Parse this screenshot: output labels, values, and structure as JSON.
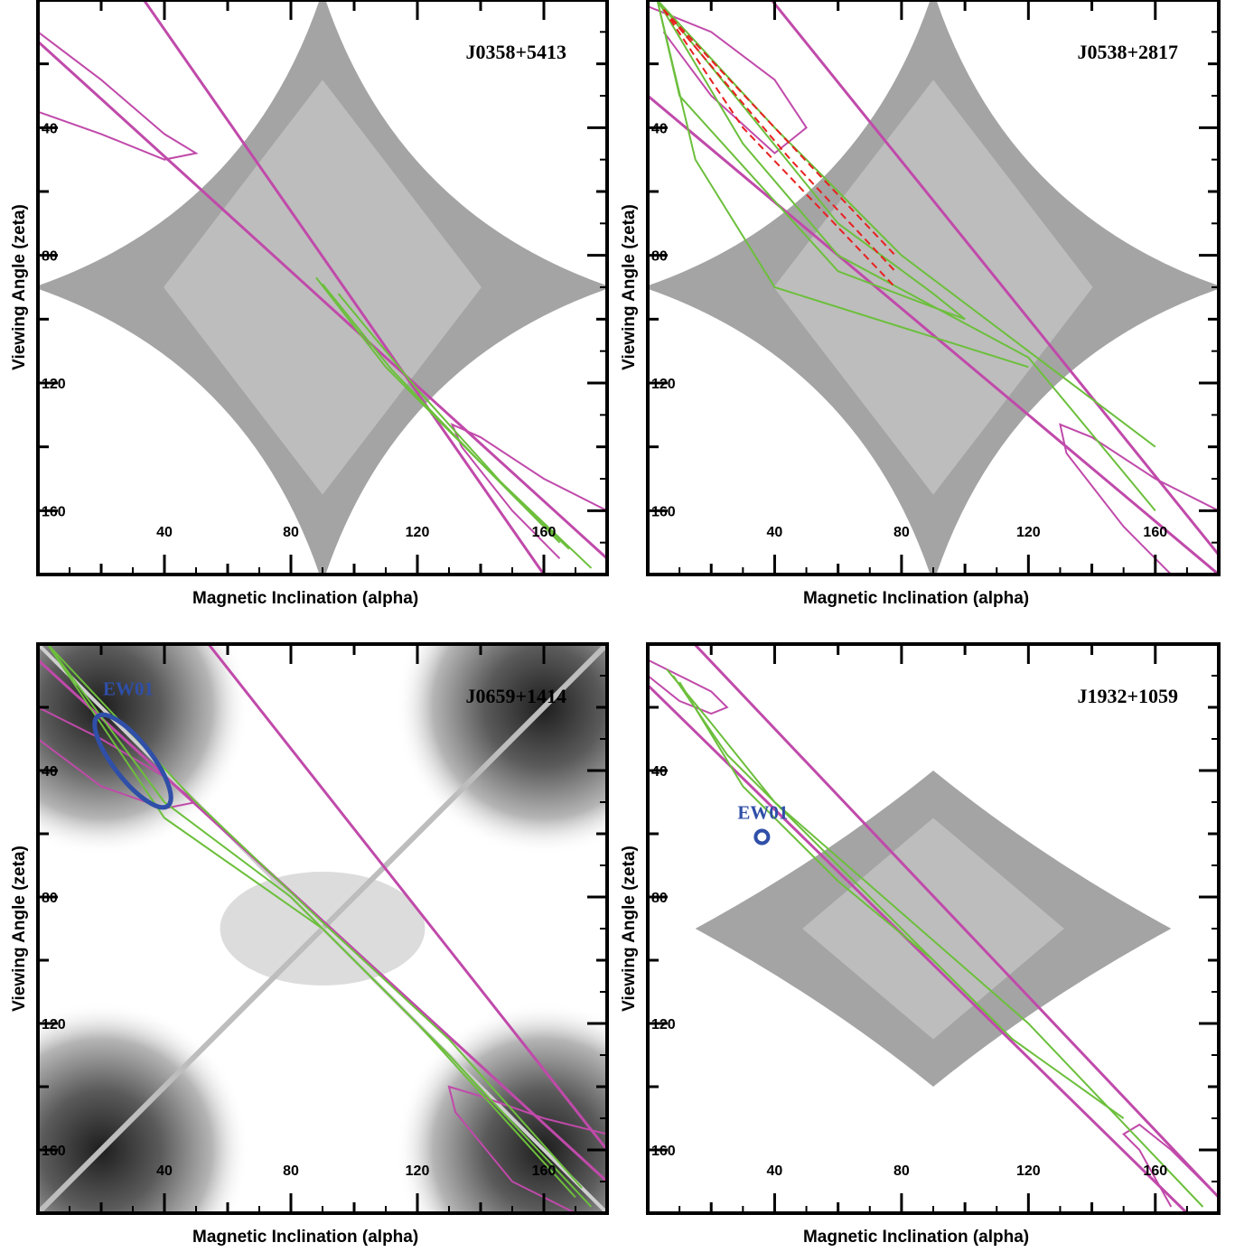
{
  "chart_data": [
    {
      "type": "contour",
      "title": "J0358+5413",
      "xlabel": "Magnetic Inclination (alpha)",
      "ylabel": "Viewing Angle (zeta)",
      "xlim": [
        0,
        180
      ],
      "ylim": [
        180,
        0
      ],
      "x_ticks": [
        40,
        80,
        120,
        160
      ],
      "y_ticks": [
        40,
        80,
        120,
        160
      ],
      "background": "astroid",
      "colors": {
        "magenta": "#c04aaa",
        "green": "#6cbf3c",
        "red": "#e82020",
        "blue": "#2f4fa8"
      },
      "magenta_lines": [
        {
          "x": [
            0,
            180
          ],
          "y": [
            13,
            175
          ]
        },
        {
          "x": [
            30,
            160
          ],
          "y": [
            -5,
            180
          ]
        }
      ],
      "magenta_ellipses": [
        {
          "points": [
            [
              0,
              10
            ],
            [
              20,
              25
            ],
            [
              40,
              42
            ],
            [
              50,
              48
            ],
            [
              40,
              50
            ],
            [
              20,
              42
            ],
            [
              0,
              35
            ]
          ]
        },
        {
          "points": [
            [
              180,
              160
            ],
            [
              160,
              150
            ],
            [
              140,
              137
            ],
            [
              131,
              133
            ],
            [
              134,
              140
            ],
            [
              150,
              160
            ],
            [
              165,
              175
            ]
          ]
        }
      ],
      "green_contours": [
        [
          [
            88,
            87
          ],
          [
            110,
            115
          ],
          [
            140,
            145
          ],
          [
            175,
            178
          ]
        ],
        [
          [
            90,
            89
          ],
          [
            112,
            116
          ],
          [
            142,
            147
          ],
          [
            165,
            170
          ]
        ],
        [
          [
            95,
            92
          ],
          [
            120,
            122
          ],
          [
            150,
            155
          ],
          [
            168,
            172
          ]
        ]
      ],
      "red_contours": [],
      "annotations": []
    },
    {
      "type": "contour",
      "title": "J0538+2817",
      "xlabel": "Magnetic Inclination (alpha)",
      "ylabel": "Viewing Angle (zeta)",
      "xlim": [
        0,
        180
      ],
      "ylim": [
        180,
        0
      ],
      "x_ticks": [
        40,
        80,
        120,
        160
      ],
      "y_ticks": [
        40,
        80,
        120,
        160
      ],
      "background": "astroid",
      "colors": {
        "magenta": "#c04aaa",
        "green": "#6cbf3c",
        "red": "#e82020",
        "blue": "#2f4fa8"
      },
      "magenta_lines": [
        {
          "x": [
            0,
            180
          ],
          "y": [
            30,
            180
          ]
        },
        {
          "x": [
            35,
            185
          ],
          "y": [
            -5,
            180
          ]
        }
      ],
      "magenta_ellipses": [
        {
          "points": [
            [
              0,
              2
            ],
            [
              20,
              10
            ],
            [
              40,
              25
            ],
            [
              50,
              40
            ],
            [
              40,
              48
            ],
            [
              20,
              30
            ],
            [
              5,
              10
            ]
          ]
        },
        {
          "points": [
            [
              180,
              160
            ],
            [
              160,
              150
            ],
            [
              140,
              137
            ],
            [
              130,
              133
            ],
            [
              132,
              142
            ],
            [
              150,
              165
            ],
            [
              165,
              180
            ]
          ]
        }
      ],
      "green_contours": [
        [
          [
            3,
            0
          ],
          [
            40,
            40
          ],
          [
            80,
            80
          ],
          [
            120,
            110
          ],
          [
            160,
            140
          ]
        ],
        [
          [
            3,
            0
          ],
          [
            30,
            45
          ],
          [
            60,
            80
          ],
          [
            120,
            112
          ],
          [
            160,
            160
          ]
        ],
        [
          [
            3,
            0
          ],
          [
            15,
            50
          ],
          [
            40,
            90
          ],
          [
            120,
            115
          ]
        ],
        [
          [
            3,
            0
          ],
          [
            60,
            70
          ],
          [
            90,
            92
          ],
          [
            100,
            100
          ],
          [
            60,
            85
          ],
          [
            10,
            30
          ],
          [
            3,
            0
          ]
        ]
      ],
      "red_contours": [
        [
          [
            5,
            3
          ],
          [
            40,
            40
          ],
          [
            78,
            80
          ]
        ],
        [
          [
            5,
            3
          ],
          [
            30,
            40
          ],
          [
            78,
            90
          ]
        ],
        [
          [
            5,
            3
          ],
          [
            45,
            50
          ],
          [
            78,
            85
          ]
        ]
      ],
      "annotations": []
    },
    {
      "type": "contour",
      "title": "J0659+1414",
      "xlabel": "Magnetic Inclination (alpha)",
      "ylabel": "Viewing Angle (zeta)",
      "xlim": [
        0,
        180
      ],
      "ylim": [
        180,
        0
      ],
      "x_ticks": [
        40,
        80,
        120,
        160
      ],
      "y_ticks": [
        40,
        80,
        120,
        160
      ],
      "background": "blobs",
      "colors": {
        "magenta": "#c04aaa",
        "green": "#6cbf3c",
        "red": "#e82020",
        "blue": "#2f4fa8"
      },
      "magenta_lines": [
        {
          "x": [
            0,
            180
          ],
          "y": [
            5,
            170
          ]
        },
        {
          "x": [
            50,
            180
          ],
          "y": [
            -5,
            160
          ]
        }
      ],
      "magenta_ellipses": [
        {
          "points": [
            [
              0,
              20
            ],
            [
              20,
              30
            ],
            [
              40,
              42
            ],
            [
              50,
              50
            ],
            [
              40,
              52
            ],
            [
              20,
              45
            ],
            [
              0,
              30
            ]
          ]
        },
        {
          "points": [
            [
              180,
              155
            ],
            [
              160,
              150
            ],
            [
              140,
              143
            ],
            [
              130,
              140
            ],
            [
              132,
              148
            ],
            [
              150,
              170
            ],
            [
              170,
              180
            ]
          ]
        }
      ],
      "green_contours": [
        [
          [
            3,
            0
          ],
          [
            40,
            50
          ],
          [
            80,
            80
          ],
          [
            120,
            120
          ],
          [
            170,
            175
          ]
        ],
        [
          [
            3,
            0
          ],
          [
            40,
            55
          ],
          [
            90,
            90
          ],
          [
            130,
            130
          ],
          [
            175,
            178
          ]
        ],
        [
          [
            3,
            0
          ],
          [
            50,
            50
          ],
          [
            90,
            88
          ],
          [
            130,
            125
          ],
          [
            172,
            172
          ]
        ]
      ],
      "red_contours": [],
      "annotations": [
        {
          "label": "EW01",
          "type": "ellipse",
          "center": [
            30,
            37
          ],
          "rx_deg": 6,
          "ry_deg": 18,
          "rotation": -38
        }
      ]
    },
    {
      "type": "contour",
      "title": "J1932+1059",
      "xlabel": "Magnetic Inclination (alpha)",
      "ylabel": "Viewing Angle (zeta)",
      "xlim": [
        0,
        180
      ],
      "ylim": [
        180,
        0
      ],
      "x_ticks": [
        40,
        80,
        120,
        160
      ],
      "y_ticks": [
        40,
        80,
        120,
        160
      ],
      "background": "small-astroid",
      "colors": {
        "magenta": "#c04aaa",
        "green": "#6cbf3c",
        "red": "#e82020",
        "blue": "#2f4fa8"
      },
      "magenta_lines": [
        {
          "x": [
            0,
            170
          ],
          "y": [
            13,
            180
          ]
        },
        {
          "x": [
            10,
            180
          ],
          "y": [
            -5,
            175
          ]
        }
      ],
      "magenta_ellipses": [
        {
          "points": [
            [
              0,
              5
            ],
            [
              10,
              10
            ],
            [
              20,
              15
            ],
            [
              25,
              20
            ],
            [
              20,
              22
            ],
            [
              10,
              18
            ],
            [
              0,
              10
            ]
          ]
        },
        {
          "points": [
            [
              180,
              175
            ],
            [
              165,
              160
            ],
            [
              155,
              152
            ],
            [
              150,
              155
            ],
            [
              155,
              160
            ],
            [
              165,
              178
            ]
          ]
        }
      ],
      "green_contours": [
        [
          [
            6,
            8
          ],
          [
            20,
            25
          ],
          [
            40,
            50
          ],
          [
            80,
            85
          ],
          [
            120,
            120
          ],
          [
            175,
            178
          ]
        ],
        [
          [
            8,
            10
          ],
          [
            25,
            35
          ],
          [
            45,
            55
          ],
          [
            80,
            90
          ],
          [
            115,
            125
          ],
          [
            150,
            150
          ]
        ],
        [
          [
            10,
            12
          ],
          [
            30,
            45
          ],
          [
            60,
            75
          ],
          [
            90,
            100
          ],
          [
            110,
            120
          ]
        ]
      ],
      "red_contours": [],
      "annotations": [
        {
          "label": "EW01",
          "type": "circle",
          "center": [
            36,
            61
          ]
        }
      ]
    }
  ]
}
